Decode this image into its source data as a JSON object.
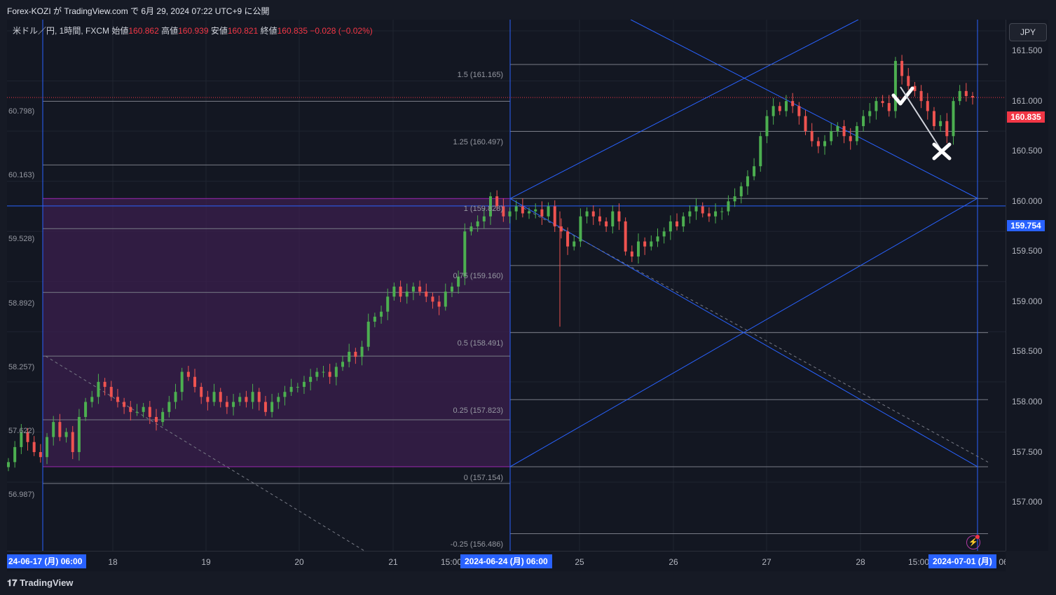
{
  "header": {
    "publish_text": "Forex-KOZI が TradingView.com で 6月 29, 2024 07:22 UTC+9 に公開"
  },
  "legend": {
    "symbol": "米ドル／円, 1時間, FXCM",
    "open_label": "始値",
    "open": "160.862",
    "high_label": "高値",
    "high": "160.939",
    "low_label": "安値",
    "low": "160.821",
    "close_label": "終値",
    "close": "160.835",
    "change": "−0.028 (−0.02%)"
  },
  "price_axis": {
    "currency": "JPY",
    "ticks": [
      "161.500",
      "161.000",
      "160.500",
      "160.000",
      "159.500",
      "159.000",
      "158.500",
      "158.000",
      "157.500",
      "157.000"
    ],
    "current_price": "160.835",
    "crosshair_price": "159.754"
  },
  "left_labels": [
    "60.798)",
    "60.163)",
    "59.528)",
    "58.892)",
    "58.257)",
    "57.622)",
    "56.987)"
  ],
  "fib_labels": [
    "1.5 (161.165)",
    "1.25 (160.497)",
    "1 (159.828)",
    "0.75 (159.160)",
    "0.5 (158.491)",
    "0.25 (157.823)",
    "0 (157.154)",
    "-0.25 (156.486)"
  ],
  "time_axis": {
    "ticks": [
      "18",
      "19",
      "20",
      "21",
      "15:00",
      "25",
      "26",
      "27",
      "28",
      "15:00"
    ],
    "left_badge": "24-06-17 (月)   06:00",
    "mid_badge": "2024-06-24 (月)   06:00",
    "right_badge": "2024-07-01 (月)",
    "right_clip": "06"
  },
  "footer": {
    "brand": "TradingView"
  },
  "colors": {
    "up": "#26a69a",
    "up_bright": "#4caf50",
    "down": "#ef5350",
    "accent": "#2962ff",
    "zone": "#3b1f4d",
    "zone_border": "#9c27b0",
    "price_badge": "#f23645"
  },
  "chart_data": {
    "type": "candlestick",
    "symbol": "USDJPY",
    "interval": "1h",
    "ylim": [
      156.486,
      161.5
    ],
    "current_price": 160.835,
    "horizontal_crosshair": 159.754,
    "fib_levels": [
      {
        "ratio": 1.5,
        "price": 161.165
      },
      {
        "ratio": 1.25,
        "price": 160.497
      },
      {
        "ratio": 1,
        "price": 159.828
      },
      {
        "ratio": 0.75,
        "price": 159.16
      },
      {
        "ratio": 0.5,
        "price": 158.491
      },
      {
        "ratio": 0.25,
        "price": 157.823
      },
      {
        "ratio": 0,
        "price": 157.154
      },
      {
        "ratio": -0.25,
        "price": 156.486
      }
    ],
    "left_fib_levels": [
      160.798,
      160.163,
      159.528,
      158.892,
      158.257,
      157.622,
      156.987
    ],
    "closes": [
      157.2,
      157.35,
      157.5,
      157.4,
      157.3,
      157.25,
      157.45,
      157.6,
      157.45,
      157.5,
      157.3,
      157.65,
      157.8,
      157.85,
      158.0,
      157.95,
      157.85,
      157.8,
      157.75,
      157.7,
      157.7,
      157.75,
      157.65,
      157.6,
      157.7,
      157.8,
      157.9,
      158.1,
      158.05,
      157.95,
      157.85,
      157.8,
      157.9,
      157.8,
      157.75,
      157.8,
      157.85,
      157.8,
      157.9,
      157.8,
      157.7,
      157.8,
      157.85,
      157.9,
      157.95,
      157.95,
      158.0,
      158.05,
      158.1,
      158.1,
      158.05,
      158.15,
      158.2,
      158.3,
      158.25,
      158.35,
      158.6,
      158.65,
      158.7,
      158.85,
      158.95,
      158.85,
      158.9,
      158.95,
      158.9,
      158.85,
      158.8,
      158.75,
      158.9,
      158.95,
      159.05,
      159.5,
      159.55,
      159.6,
      159.65,
      159.85,
      159.75,
      159.65,
      159.7,
      159.75,
      159.68,
      159.7,
      159.72,
      159.65,
      159.75,
      159.55,
      159.5,
      159.35,
      159.4,
      159.65,
      159.7,
      159.65,
      159.6,
      159.55,
      159.7,
      159.6,
      159.3,
      159.25,
      159.4,
      159.35,
      159.4,
      159.45,
      159.5,
      159.6,
      159.55,
      159.65,
      159.7,
      159.75,
      159.68,
      159.65,
      159.7,
      159.7,
      159.8,
      159.85,
      159.95,
      160.05,
      160.15,
      160.45,
      160.65,
      160.75,
      160.7,
      160.8,
      160.75,
      160.65,
      160.5,
      160.4,
      160.35,
      160.4,
      160.5,
      160.55,
      160.45,
      160.4,
      160.55,
      160.65,
      160.7,
      160.8,
      160.78,
      160.7,
      161.2,
      161.05,
      160.95,
      160.9,
      160.8,
      160.7,
      160.55,
      160.6,
      160.45,
      160.8,
      160.9,
      160.85,
      160.835
    ]
  }
}
